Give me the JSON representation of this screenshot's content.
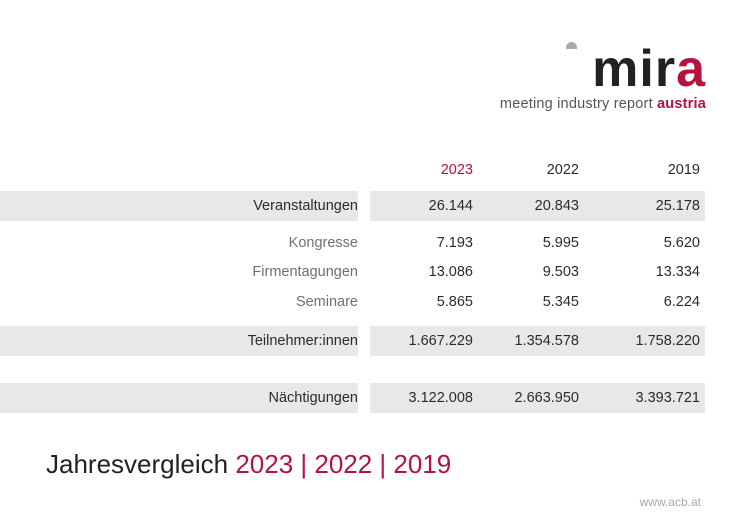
{
  "logo": {
    "word_main": "mir",
    "word_accent": "a",
    "tagline_main": "meeting industry report ",
    "tagline_accent": "austria"
  },
  "table": {
    "columns": [
      "2023",
      "2022",
      "2019"
    ],
    "rows": [
      {
        "label": "Veranstaltungen",
        "values": [
          "26.144",
          "20.843",
          "25.178"
        ]
      },
      {
        "label": "Kongresse",
        "values": [
          "7.193",
          "5.995",
          "5.620"
        ]
      },
      {
        "label": "Firmentagungen",
        "values": [
          "13.086",
          "9.503",
          "13.334"
        ]
      },
      {
        "label": "Seminare",
        "values": [
          "5.865",
          "5.345",
          "6.224"
        ]
      },
      {
        "label": "Teilnehmer:innen",
        "values": [
          "1.667.229",
          "1.354.578",
          "1.758.220"
        ]
      },
      {
        "label": "Nächtigungen",
        "values": [
          "3.122.008",
          "2.663.950",
          "3.393.721"
        ]
      }
    ]
  },
  "title": {
    "main": "Jahresvergleich ",
    "accent": "2023 | 2022 | 2019"
  },
  "footer": {
    "url": "www.acb.at"
  },
  "colors": {
    "accent": "#b5123e",
    "row_shade": "#e6e8ea"
  }
}
